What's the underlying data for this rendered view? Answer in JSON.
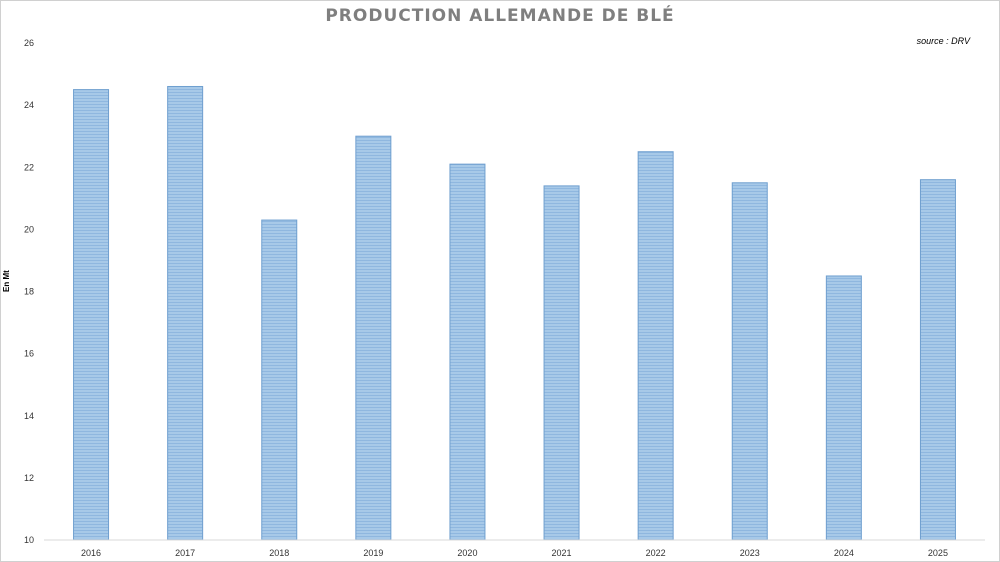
{
  "chart_data": {
    "type": "bar",
    "title": "PRODUCTION ALLEMANDE DE BLÉ",
    "source": "source : DRV",
    "ylabel": "En Mt",
    "xlabel": "",
    "categories": [
      "2016",
      "2017",
      "2018",
      "2019",
      "2020",
      "2021",
      "2022",
      "2023",
      "2024",
      "2025"
    ],
    "values": [
      24.5,
      24.6,
      20.3,
      23.0,
      22.1,
      21.4,
      22.5,
      21.5,
      18.5,
      21.6
    ],
    "ylim": [
      10,
      26
    ],
    "yticks": [
      "10",
      "12",
      "14",
      "16",
      "18",
      "20",
      "22",
      "24",
      "26"
    ],
    "bar_color": "#9dc3e6",
    "bar_stripe_color": "#7aa9d4",
    "bar_border_color": "#6f9fcf",
    "grid": false,
    "legend": "none"
  }
}
